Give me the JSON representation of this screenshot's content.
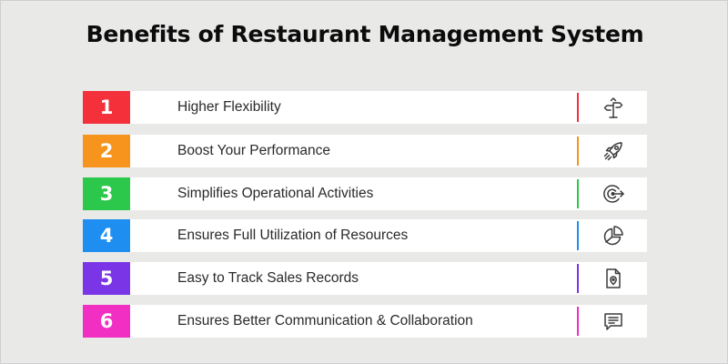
{
  "title": "Benefits of Restaurant Management System",
  "items": [
    {
      "number": "1",
      "label": "Higher Flexibility",
      "color": "#f4303a",
      "icon": "signpost-arrows-icon"
    },
    {
      "number": "2",
      "label": "Boost Your Performance",
      "color": "#f7941d",
      "icon": "rocket-icon"
    },
    {
      "number": "3",
      "label": "Simplifies Operational Activities",
      "color": "#2cc84b",
      "icon": "target-arrow-icon"
    },
    {
      "number": "4",
      "label": "Ensures Full Utilization of Resources",
      "color": "#1e8ff0",
      "icon": "pie-chart-icon"
    },
    {
      "number": "5",
      "label": "Easy to Track Sales Records",
      "color": "#7a35e6",
      "icon": "document-location-icon"
    },
    {
      "number": "6",
      "label": "Ensures Better Communication & Collaboration",
      "color": "#f22fc3",
      "icon": "chat-message-icon"
    }
  ]
}
